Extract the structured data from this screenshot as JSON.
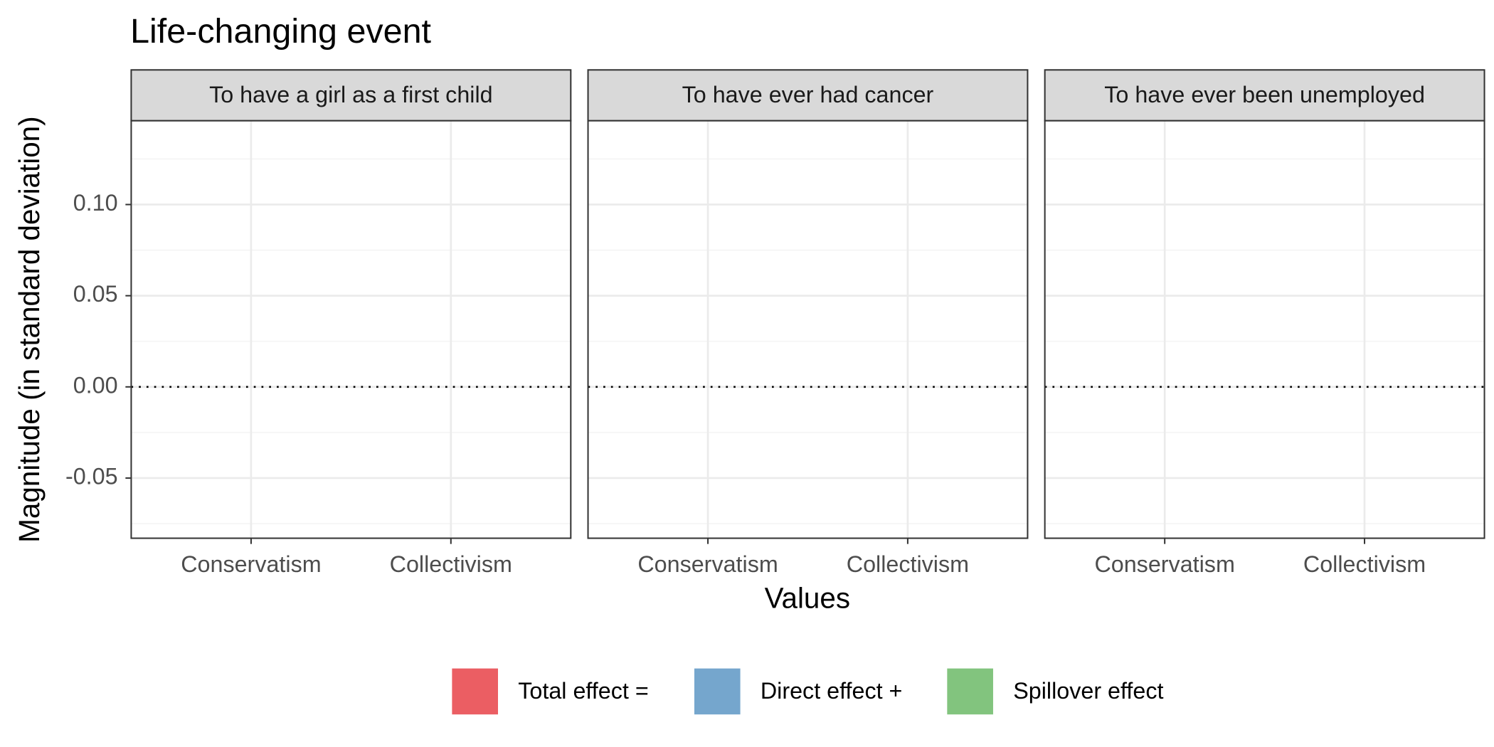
{
  "chart_data": {
    "type": "bar",
    "title": "Life-changing event",
    "facets": [
      "To have a girl as a first child",
      "To have ever had cancer",
      "To have ever been unemployed"
    ],
    "categories": [
      "Conservatism",
      "Collectivism"
    ],
    "xlabel": "Values",
    "ylabel": "Magnitude (in standard deviation)",
    "ylim": [
      -0.083,
      0.146
    ],
    "yticks": [
      {
        "value": -0.05,
        "label": "-0.05"
      },
      {
        "value": 0,
        "label": "0.00"
      },
      {
        "value": 0.05,
        "label": "0.05"
      },
      {
        "value": 0.1,
        "label": "0.10"
      }
    ],
    "reference_line": 0,
    "grid": true,
    "legend_position": "bottom",
    "series": [
      {
        "name": "Total effect =",
        "color": "#eb5e63"
      },
      {
        "name": "Direct effect +",
        "color": "#75a6cd"
      },
      {
        "name": "Spillover effect",
        "color": "#82c47e"
      }
    ]
  }
}
